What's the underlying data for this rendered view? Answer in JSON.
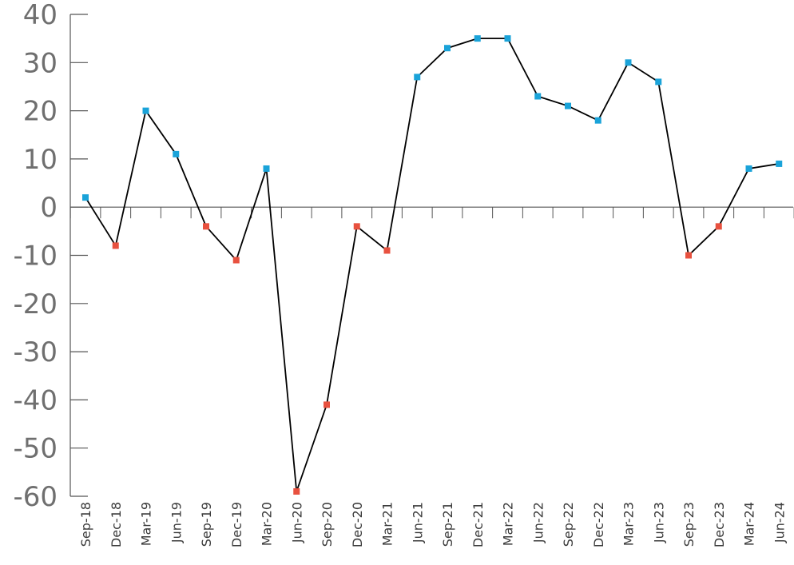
{
  "chart_data": {
    "type": "line",
    "title": "",
    "xlabel": "",
    "ylabel": "",
    "ylim": [
      -60,
      40
    ],
    "yticks": [
      40,
      30,
      20,
      10,
      0,
      -10,
      -20,
      -30,
      -40,
      -50,
      -60
    ],
    "grid": false,
    "legend": "none",
    "categories": [
      "Sep-18",
      "Dec-18",
      "Mar-19",
      "Jun-19",
      "Sep-19",
      "Dec-19",
      "Mar-20",
      "Jun-20",
      "Sep-20",
      "Dec-20",
      "Mar-21",
      "Jun-21",
      "Sep-21",
      "Dec-21",
      "Mar-22",
      "Jun-22",
      "Sep-22",
      "Dec-22",
      "Mar-23",
      "Jun-23",
      "Sep-23",
      "Dec-23",
      "Mar-24",
      "Jun-24"
    ],
    "series": [
      {
        "values": [
          2,
          -8,
          20,
          11,
          -4,
          -11,
          8,
          -59,
          -41,
          -4,
          -9,
          27,
          33,
          35,
          35,
          23,
          21,
          18,
          30,
          26,
          -10,
          -4,
          8,
          9
        ]
      }
    ],
    "colors": {
      "line": "#000000",
      "positive_marker": "#1aa3d9",
      "negative_marker": "#e8513f",
      "axis": "#555555"
    }
  }
}
